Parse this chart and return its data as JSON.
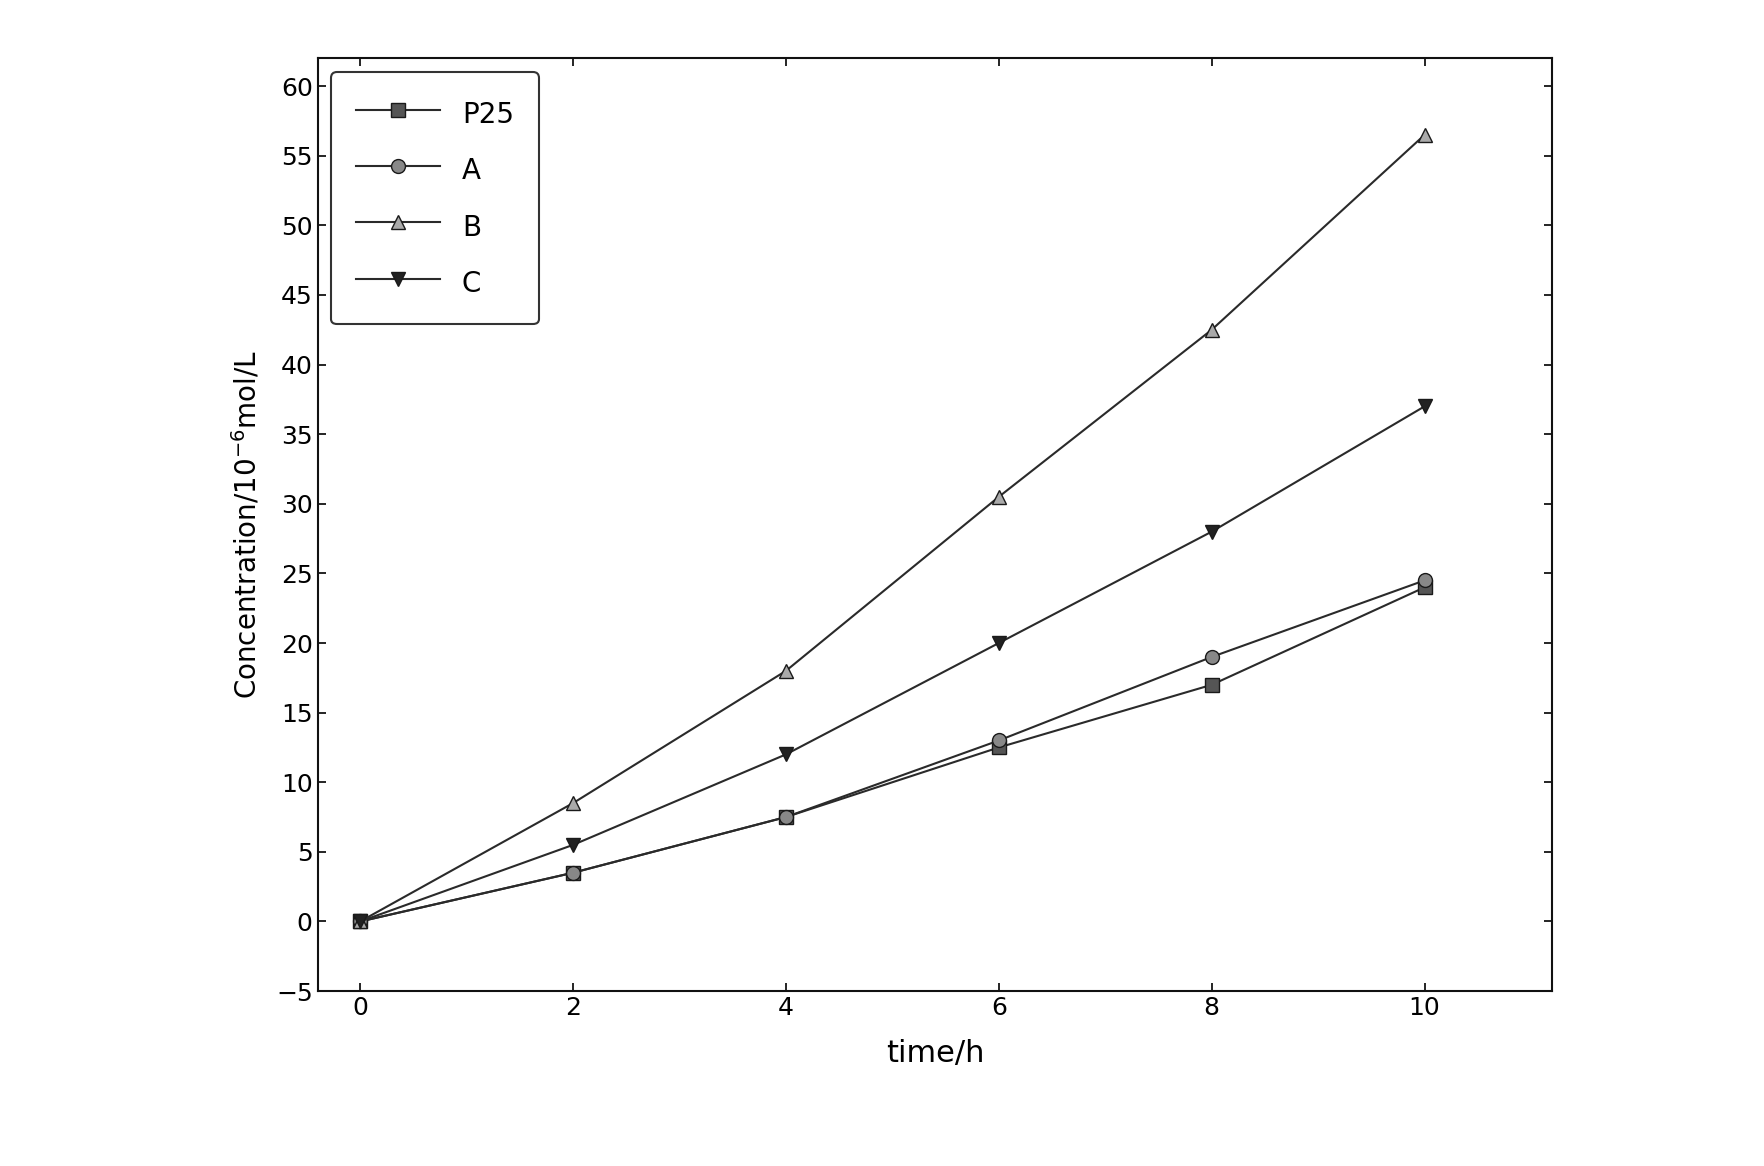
{
  "x": [
    0,
    2,
    4,
    6,
    8,
    10
  ],
  "series": {
    "P25": [
      0,
      3.5,
      7.5,
      12.5,
      17.0,
      24.0
    ],
    "A": [
      0,
      3.5,
      7.5,
      13.0,
      19.0,
      24.5
    ],
    "B": [
      0,
      8.5,
      18.0,
      30.5,
      42.5,
      56.5
    ],
    "C": [
      0,
      5.5,
      12.0,
      20.0,
      28.0,
      37.0
    ]
  },
  "legend_names": [
    "P25",
    "A",
    "B",
    "C"
  ],
  "markers": {
    "P25": "s",
    "A": "o",
    "B": "^",
    "C": "v"
  },
  "line_color": "#2a2a2a",
  "marker_facecolor": {
    "P25": "#555555",
    "A": "#888888",
    "B": "#aaaaaa",
    "C": "#222222"
  },
  "xlabel": "time/h",
  "ylabel": "Concentration/10$^{-6}$mol/L",
  "xlim": [
    -0.4,
    11.2
  ],
  "ylim": [
    -5,
    62
  ],
  "xticks": [
    0,
    2,
    4,
    6,
    8,
    10
  ],
  "yticks": [
    -5,
    0,
    5,
    10,
    15,
    20,
    25,
    30,
    35,
    40,
    45,
    50,
    55,
    60
  ],
  "legend_loc": "upper left",
  "bg_color": "#ffffff",
  "markersize": 10,
  "linewidth": 1.5,
  "figsize": [
    17.64,
    11.66
  ],
  "dpi": 100
}
